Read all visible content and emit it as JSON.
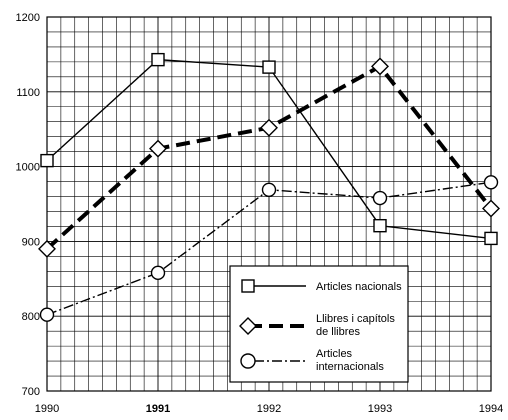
{
  "chart_data": {
    "type": "line",
    "x": [
      "1990",
      "1991",
      "1992",
      "1993",
      "1994"
    ],
    "x_bold": [
      "1991"
    ],
    "ylim": [
      700,
      1200
    ],
    "yticks": [
      700,
      800,
      900,
      1000,
      1100,
      1200
    ],
    "grid": true,
    "legend_position": "bottom-right",
    "series": [
      {
        "name": "Articles nacionals",
        "values": [
          1008,
          1143,
          1133,
          921,
          904
        ],
        "marker": "square",
        "style": "solid",
        "color": "#000000"
      },
      {
        "name": "Llibres i capítols de llibres",
        "values": [
          890,
          1024,
          1052,
          1134,
          944
        ],
        "marker": "diamond",
        "style": "bold-dashed",
        "color": "#000000"
      },
      {
        "name": "Articles internacionals",
        "values": [
          802,
          858,
          969,
          958,
          979
        ],
        "marker": "circle",
        "style": "dash-dot",
        "color": "#000000"
      }
    ]
  },
  "legend": {
    "items": [
      {
        "label_lines": [
          "Articles nacionals"
        ]
      },
      {
        "label_lines": [
          "Llibres i capítols",
          "de llibres"
        ]
      },
      {
        "label_lines": [
          "Articles",
          "internacionals"
        ]
      }
    ]
  }
}
